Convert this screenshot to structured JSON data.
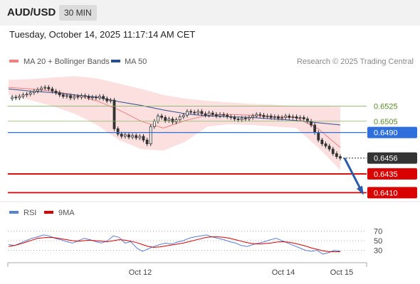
{
  "header": {
    "symbol": "AUD/USD",
    "timeframe": "30 MIN",
    "datetime": "Tuesday, October 14, 2025 11:17:14 AM CET"
  },
  "legend": {
    "bollinger": "MA 20 + Bollinger Bands",
    "ma50": "MA 50",
    "copyright": "Research © 2025 Trading Central",
    "rsi": "RSI",
    "rsi_ma": "9MA"
  },
  "colors": {
    "bollinger": "#f08080",
    "band_fill": "#fcdcdc",
    "ma50": "#2b4f8f",
    "candle": "#333333",
    "resistance": "#8ab46a",
    "pivot": "#2f6fdb",
    "support": "#d90000",
    "rsi": "#5a7fd6",
    "rsi_ma": "#d90000",
    "arrow": "#2b5aa8"
  },
  "chart_data": [
    {
      "type": "candlestick",
      "x_ticks": [
        "Oct 12",
        "Oct 14",
        "Oct 15"
      ],
      "ylim": [
        0.64,
        0.6568
      ],
      "levels": [
        {
          "label": "0.6525",
          "value": 0.6525,
          "kind": "resistance"
        },
        {
          "label": "0.6505",
          "value": 0.6505,
          "kind": "resistance"
        },
        {
          "label": "0.6490",
          "value": 0.649,
          "kind": "pivot"
        },
        {
          "label": "0.6456",
          "value": 0.6456,
          "kind": "last"
        },
        {
          "label": "0.6435",
          "value": 0.6435,
          "kind": "support"
        },
        {
          "label": "0.6410",
          "value": 0.641,
          "kind": "support"
        }
      ],
      "close": [
        0.6535,
        0.6537,
        0.6536,
        0.6538,
        0.654,
        0.6541,
        0.6543,
        0.6545,
        0.6547,
        0.6549,
        0.655,
        0.6548,
        0.6545,
        0.6543,
        0.654,
        0.6538,
        0.6539,
        0.6536,
        0.6538,
        0.6537,
        0.6539,
        0.6538,
        0.6536,
        0.6537,
        0.6536,
        0.6538,
        0.6535,
        0.6532,
        0.6533,
        0.6495,
        0.6488,
        0.6485,
        0.6487,
        0.6484,
        0.6486,
        0.6483,
        0.6485,
        0.648,
        0.6475,
        0.6498,
        0.6505,
        0.6512,
        0.651,
        0.6506,
        0.6508,
        0.6504,
        0.6507,
        0.6511,
        0.6513,
        0.6518,
        0.6517,
        0.6516,
        0.6518,
        0.6515,
        0.6513,
        0.6516,
        0.6514,
        0.6512,
        0.6514,
        0.6513,
        0.6511,
        0.651,
        0.6508,
        0.6507,
        0.6509,
        0.6508,
        0.651,
        0.6512,
        0.6514,
        0.6513,
        0.6511,
        0.6512,
        0.651,
        0.6511,
        0.6509,
        0.651,
        0.6512,
        0.651,
        0.6511,
        0.6509,
        0.651,
        0.6508,
        0.6505,
        0.65,
        0.649,
        0.648,
        0.6475,
        0.6472,
        0.6468,
        0.6462,
        0.6458,
        0.6456
      ],
      "bollinger_upper": [
        0.656,
        0.6561,
        0.6563,
        0.6565,
        0.6562,
        0.6555,
        0.6548,
        0.654,
        0.6535,
        0.6532,
        0.653,
        0.6528,
        0.6527,
        0.6525,
        0.6525,
        0.6524
      ],
      "bollinger_mid": [
        0.655,
        0.6548,
        0.6545,
        0.654,
        0.6532,
        0.652,
        0.6505,
        0.6496,
        0.6506,
        0.6513,
        0.6514,
        0.6513,
        0.6511,
        0.651,
        0.6495,
        0.647
      ],
      "bollinger_lower": [
        0.654,
        0.6533,
        0.6525,
        0.6515,
        0.65,
        0.648,
        0.6468,
        0.6466,
        0.6478,
        0.6498,
        0.6501,
        0.65,
        0.6498,
        0.6496,
        0.647,
        0.644
      ],
      "ma50": [
        0.6548,
        0.6545,
        0.6543,
        0.654,
        0.6537,
        0.6531,
        0.6526,
        0.652,
        0.6515,
        0.6512,
        0.6511,
        0.651,
        0.6508,
        0.6506,
        0.6503,
        0.65
      ]
    },
    {
      "type": "line",
      "title": "RSI",
      "y_ticks": [
        "70",
        "50",
        "30"
      ],
      "ylim": [
        10,
        90
      ],
      "series": [
        {
          "name": "RSI",
          "values": [
            42,
            40,
            45,
            50,
            55,
            58,
            62,
            60,
            55,
            52,
            48,
            45,
            50,
            55,
            52,
            48,
            45,
            50,
            60,
            57,
            45,
            48,
            35,
            28,
            33,
            38,
            42,
            45,
            43,
            47,
            50,
            55,
            58,
            60,
            62,
            58,
            55,
            52,
            48,
            45,
            40,
            38,
            42,
            45,
            48,
            52,
            55,
            50,
            45,
            40,
            35,
            30,
            28,
            30,
            22,
            25,
            30,
            28
          ]
        },
        {
          "name": "9MA",
          "values": [
            38,
            40,
            43,
            47,
            51,
            55,
            56,
            57,
            56,
            54,
            52,
            50,
            49,
            50,
            51,
            50,
            49,
            48,
            50,
            52,
            51,
            49,
            46,
            42,
            38,
            36,
            37,
            39,
            41,
            43,
            45,
            48,
            51,
            54,
            57,
            58,
            58,
            57,
            55,
            52,
            49,
            46,
            44,
            43,
            44,
            45,
            47,
            48,
            47,
            45,
            42,
            39,
            35,
            32,
            29,
            27,
            27,
            27
          ]
        }
      ]
    }
  ]
}
